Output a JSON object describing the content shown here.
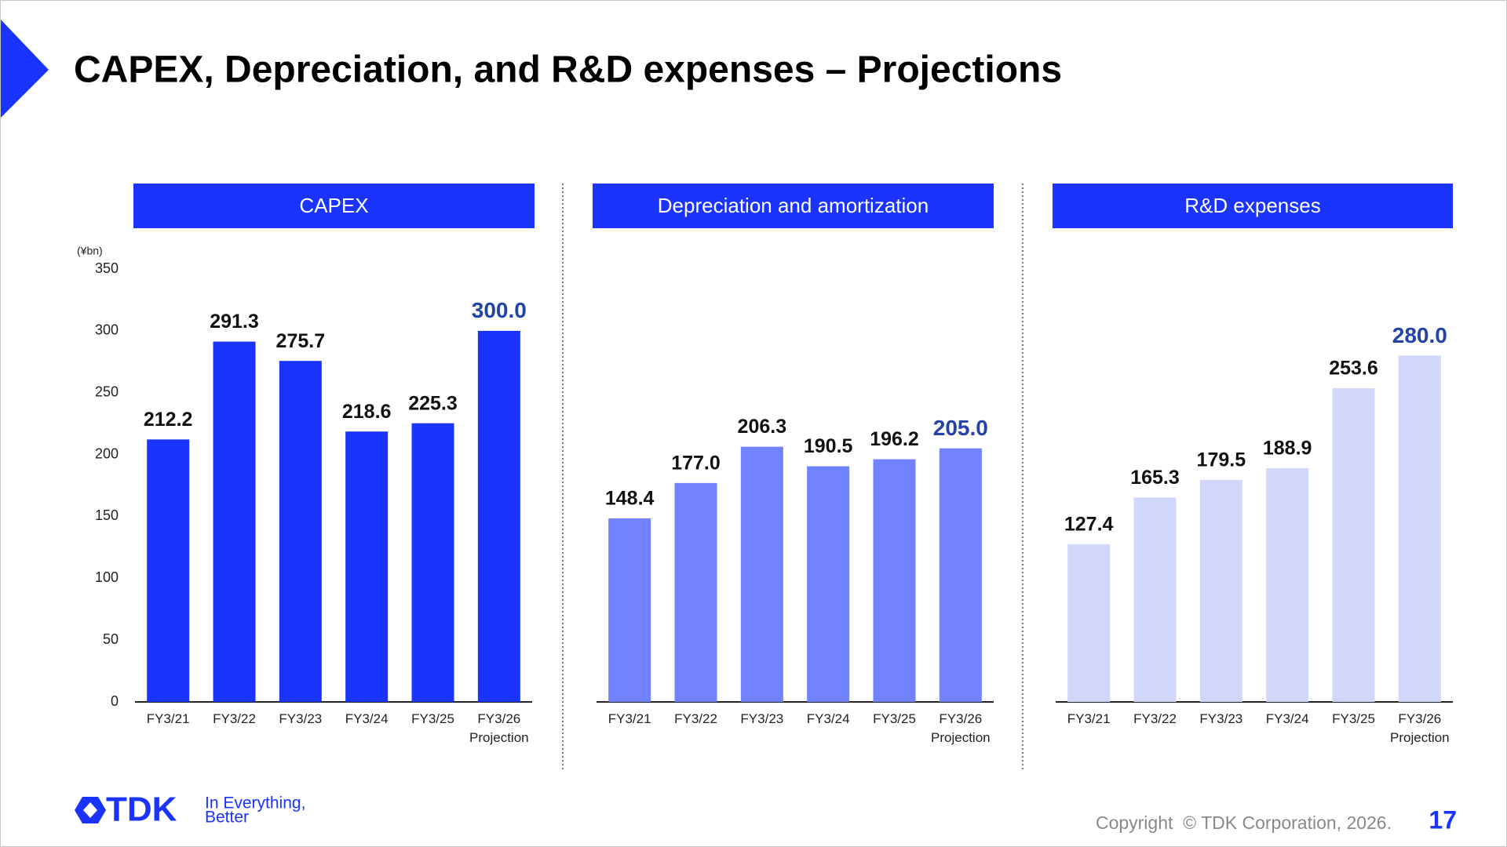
{
  "header": {
    "title": "CAPEX, Depreciation, and R&D expenses – Projections"
  },
  "chart_data": [
    {
      "type": "bar",
      "title": "CAPEX",
      "y_label": "(¥bn)",
      "categories": [
        "FY3/21",
        "FY3/22",
        "FY3/23",
        "FY3/24",
        "FY3/25",
        "FY3/26\nProjection"
      ],
      "values": [
        212.2,
        291.3,
        275.7,
        218.6,
        225.3,
        300
      ],
      "value_labels": [
        "212.2",
        "291.3",
        "275.7",
        "218.6",
        "225.3",
        "300.0"
      ],
      "color": "#1a33ff",
      "ylim": [
        0,
        350
      ],
      "yticks": [
        0,
        50,
        100,
        150,
        200,
        250,
        300,
        350
      ]
    },
    {
      "type": "bar",
      "title": "Depreciation and amortization",
      "categories": [
        "FY3/21",
        "FY3/22",
        "FY3/23",
        "FY3/24",
        "FY3/25",
        "FY3/26\nProjection"
      ],
      "values": [
        148.4,
        177,
        206.3,
        190.5,
        196.2,
        205
      ],
      "value_labels": [
        "148.4",
        "177.0",
        "206.3",
        "190.5",
        "196.2",
        "205.0"
      ],
      "color": "#7082ff",
      "ylim": [
        0,
        350
      ]
    },
    {
      "type": "bar",
      "title": "R&D expenses",
      "categories": [
        "FY3/21",
        "FY3/22",
        "FY3/23",
        "FY3/24",
        "FY3/25",
        "FY3/26\nProjection"
      ],
      "values": [
        127.4,
        165.3,
        179.5,
        188.9,
        253.6,
        280
      ],
      "value_labels": [
        "127.4",
        "165.3",
        "179.5",
        "188.9",
        "253.6",
        "280.0"
      ],
      "color": "#d1d6fb",
      "ylim": [
        0,
        350
      ]
    }
  ],
  "footer": {
    "logo": "TDK",
    "tagline": [
      "In Everything,",
      "Better"
    ],
    "copyright": "Copyright  © TDK Corporation, 2026.",
    "page": "17"
  }
}
